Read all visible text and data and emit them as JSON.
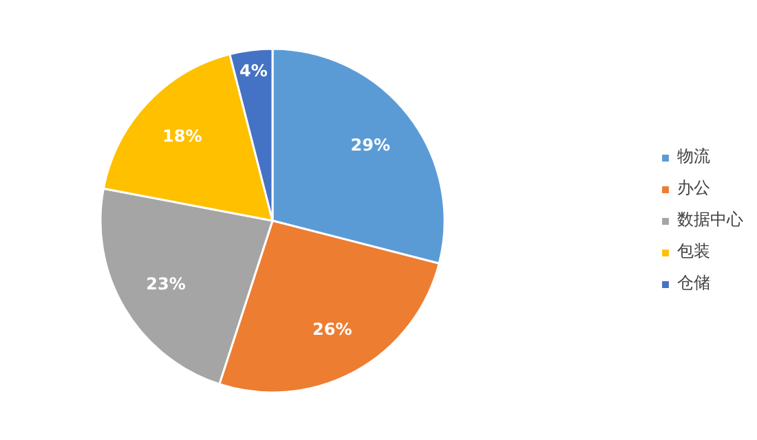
{
  "chart_data": {
    "type": "pie",
    "categories": [
      "物流",
      "办公",
      "数据中心",
      "包装",
      "仓储"
    ],
    "values": [
      29,
      26,
      23,
      18,
      4
    ],
    "colors": [
      "#5b9bd5",
      "#ed7d31",
      "#a5a5a5",
      "#ffc000",
      "#4472c4"
    ],
    "value_labels": [
      "29%",
      "26%",
      "23%",
      "18%",
      "4%"
    ],
    "legend": "right"
  }
}
